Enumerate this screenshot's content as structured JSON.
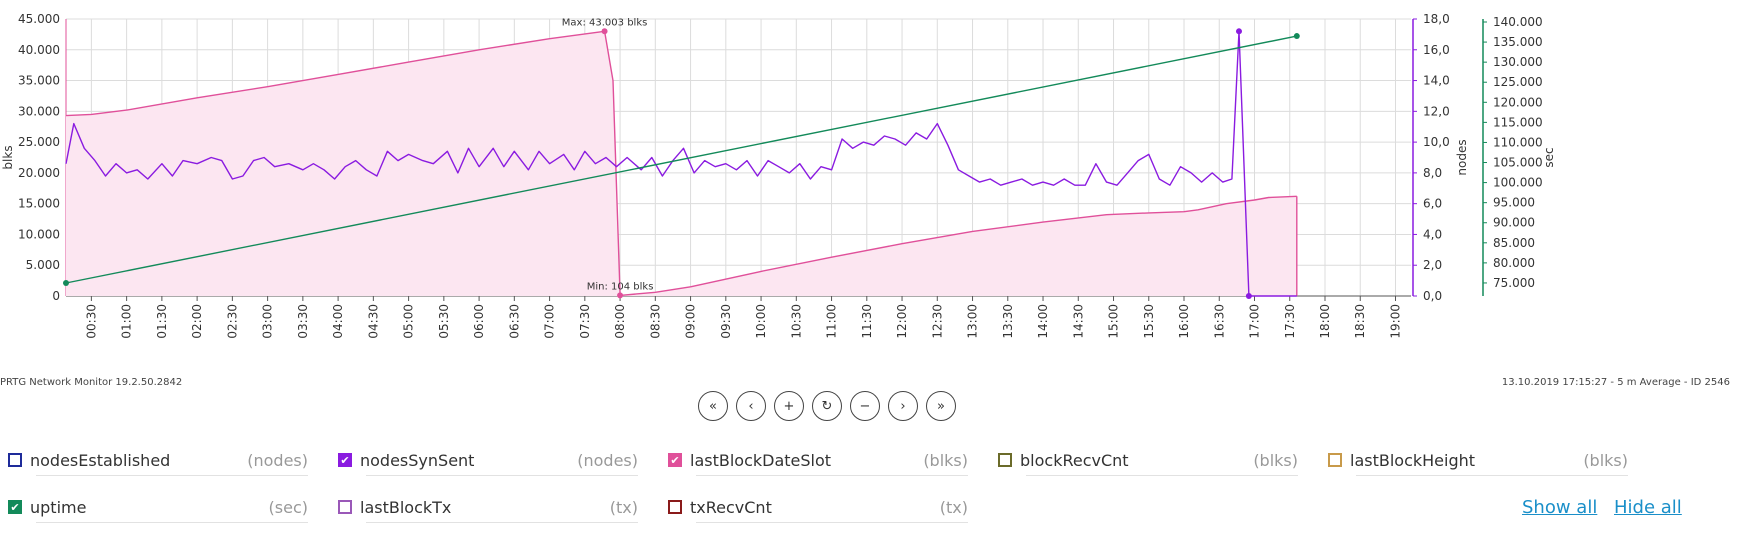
{
  "footer": {
    "left": "PRTG Network Monitor 19.2.50.2842",
    "right": "13.10.2019 17:15:27 - 5 m Average - ID 2546"
  },
  "nav": {
    "buttons": [
      {
        "name": "first-page-button",
        "glyph": "«"
      },
      {
        "name": "prev-page-button",
        "glyph": "‹"
      },
      {
        "name": "zoom-in-button",
        "glyph": "+"
      },
      {
        "name": "reset-button",
        "glyph": "↻"
      },
      {
        "name": "zoom-out-button",
        "glyph": "−"
      },
      {
        "name": "next-page-button",
        "glyph": "›"
      },
      {
        "name": "last-page-button",
        "glyph": "»"
      }
    ]
  },
  "legend": {
    "items": [
      {
        "name": "nodesEstablished",
        "unit": "(nodes)",
        "color": "#1e2b9a",
        "checked": false
      },
      {
        "name": "nodesSynSent",
        "unit": "(nodes)",
        "color": "#8a1be0",
        "checked": true
      },
      {
        "name": "lastBlockDateSlot",
        "unit": "(blks)",
        "color": "#e0509a",
        "checked": true
      },
      {
        "name": "blockRecvCnt",
        "unit": "(blks)",
        "color": "#6b6b2a",
        "checked": false
      },
      {
        "name": "lastBlockHeight",
        "unit": "(blks)",
        "color": "#c89a4a",
        "checked": false
      },
      {
        "name": "uptime",
        "unit": "(sec)",
        "color": "#138a5a",
        "checked": true
      },
      {
        "name": "lastBlockTx",
        "unit": "(tx)",
        "color": "#9a58b8",
        "checked": false
      },
      {
        "name": "txRecvCnt",
        "unit": "(tx)",
        "color": "#8a1a1a",
        "checked": false
      }
    ],
    "show_all": "Show all",
    "hide_all": "Hide all"
  },
  "chart_data": {
    "type": "line",
    "x_ticks": [
      "00:30",
      "01:00",
      "01:30",
      "02:00",
      "02:30",
      "03:00",
      "03:30",
      "04:00",
      "04:30",
      "05:00",
      "05:30",
      "06:00",
      "06:30",
      "07:00",
      "07:30",
      "08:00",
      "08:30",
      "09:00",
      "09:30",
      "10:00",
      "10:30",
      "11:00",
      "11:30",
      "12:00",
      "12:30",
      "13:00",
      "13:30",
      "14:00",
      "14:30",
      "15:00",
      "15:30",
      "16:00",
      "16:30",
      "17:00",
      "17:30",
      "18:00",
      "18:30",
      "19:00"
    ],
    "xrange_hours": [
      0.14,
      19.22
    ],
    "axes": {
      "left": {
        "label": "blks",
        "ticks": [
          "0",
          "5.000",
          "10.000",
          "15.000",
          "20.000",
          "25.000",
          "30.000",
          "35.000",
          "40.000",
          "45.000"
        ],
        "range": [
          0,
          45000
        ],
        "color": "#333333"
      },
      "right1": {
        "label": "nodes",
        "ticks": [
          "0,0",
          "2,0",
          "4,0",
          "6,0",
          "8,0",
          "10,0",
          "12,0",
          "14,0",
          "16,0",
          "18,0"
        ],
        "range": [
          0,
          18
        ],
        "color": "#8a1be0"
      },
      "right2": {
        "label": "sec",
        "ticks": [
          "75.000",
          "80.000",
          "85.000",
          "90.000",
          "95.000",
          "100.000",
          "105.000",
          "110.000",
          "115.000",
          "120.000",
          "125.000",
          "130.000",
          "135.000",
          "140.000"
        ],
        "range": [
          71750,
          140750
        ],
        "color": "#138a5a"
      }
    },
    "grid": true,
    "series": [
      {
        "name": "lastBlockDateSlot",
        "axis": "left",
        "color": "#e0509a",
        "fill": "#fce6f1",
        "style": "area",
        "points": [
          [
            0.14,
            29300
          ],
          [
            0.5,
            29500
          ],
          [
            1,
            30200
          ],
          [
            2,
            32200
          ],
          [
            3,
            34000
          ],
          [
            4,
            36000
          ],
          [
            5,
            38000
          ],
          [
            6,
            40000
          ],
          [
            7,
            41800
          ],
          [
            7.78,
            43003
          ],
          [
            7.9,
            35000
          ],
          [
            8.0,
            104
          ],
          [
            8.5,
            600
          ],
          [
            9,
            1500
          ],
          [
            10,
            4000
          ],
          [
            11,
            6300
          ],
          [
            12,
            8500
          ],
          [
            13,
            10500
          ],
          [
            14,
            12000
          ],
          [
            14.9,
            13200
          ],
          [
            15.5,
            13500
          ],
          [
            16,
            13700
          ],
          [
            16.2,
            14000
          ],
          [
            16.6,
            15000
          ],
          [
            17.0,
            15600
          ],
          [
            17.2,
            16000
          ],
          [
            17.6,
            16200
          ]
        ],
        "annotations": [
          {
            "text": "Max: 43.003 blks",
            "x": 7.78,
            "y": 43003
          },
          {
            "text": "Min: 104 blks",
            "x": 8.0,
            "y": 104
          }
        ]
      },
      {
        "name": "nodesSynSent",
        "axis": "right1",
        "color": "#8a1be0",
        "style": "line",
        "points": [
          [
            0.14,
            8.6
          ],
          [
            0.25,
            11.2
          ],
          [
            0.4,
            9.6
          ],
          [
            0.55,
            8.8
          ],
          [
            0.7,
            7.8
          ],
          [
            0.85,
            8.6
          ],
          [
            1.0,
            8.0
          ],
          [
            1.15,
            8.2
          ],
          [
            1.3,
            7.6
          ],
          [
            1.5,
            8.6
          ],
          [
            1.65,
            7.8
          ],
          [
            1.8,
            8.8
          ],
          [
            2.0,
            8.6
          ],
          [
            2.2,
            9.0
          ],
          [
            2.35,
            8.8
          ],
          [
            2.5,
            7.6
          ],
          [
            2.65,
            7.8
          ],
          [
            2.8,
            8.8
          ],
          [
            2.95,
            9.0
          ],
          [
            3.1,
            8.4
          ],
          [
            3.3,
            8.6
          ],
          [
            3.5,
            8.2
          ],
          [
            3.65,
            8.6
          ],
          [
            3.8,
            8.2
          ],
          [
            3.95,
            7.6
          ],
          [
            4.1,
            8.4
          ],
          [
            4.25,
            8.8
          ],
          [
            4.4,
            8.2
          ],
          [
            4.55,
            7.8
          ],
          [
            4.7,
            9.4
          ],
          [
            4.85,
            8.8
          ],
          [
            5.0,
            9.2
          ],
          [
            5.2,
            8.8
          ],
          [
            5.35,
            8.6
          ],
          [
            5.55,
            9.4
          ],
          [
            5.7,
            8.0
          ],
          [
            5.85,
            9.6
          ],
          [
            6.0,
            8.4
          ],
          [
            6.2,
            9.6
          ],
          [
            6.35,
            8.4
          ],
          [
            6.5,
            9.4
          ],
          [
            6.7,
            8.2
          ],
          [
            6.85,
            9.4
          ],
          [
            7.0,
            8.6
          ],
          [
            7.2,
            9.2
          ],
          [
            7.35,
            8.2
          ],
          [
            7.5,
            9.4
          ],
          [
            7.65,
            8.6
          ],
          [
            7.8,
            9.0
          ],
          [
            7.95,
            8.4
          ],
          [
            8.1,
            9.0
          ],
          [
            8.3,
            8.2
          ],
          [
            8.45,
            9.0
          ],
          [
            8.6,
            7.8
          ],
          [
            8.75,
            8.8
          ],
          [
            8.9,
            9.6
          ],
          [
            9.05,
            8.0
          ],
          [
            9.2,
            8.8
          ],
          [
            9.35,
            8.4
          ],
          [
            9.5,
            8.6
          ],
          [
            9.65,
            8.2
          ],
          [
            9.8,
            8.8
          ],
          [
            9.95,
            7.8
          ],
          [
            10.1,
            8.8
          ],
          [
            10.25,
            8.4
          ],
          [
            10.4,
            8.0
          ],
          [
            10.55,
            8.6
          ],
          [
            10.7,
            7.6
          ],
          [
            10.85,
            8.4
          ],
          [
            11.0,
            8.2
          ],
          [
            11.15,
            10.2
          ],
          [
            11.3,
            9.6
          ],
          [
            11.45,
            10.0
          ],
          [
            11.6,
            9.8
          ],
          [
            11.75,
            10.4
          ],
          [
            11.9,
            10.2
          ],
          [
            12.05,
            9.8
          ],
          [
            12.2,
            10.6
          ],
          [
            12.35,
            10.2
          ],
          [
            12.5,
            11.2
          ],
          [
            12.65,
            9.8
          ],
          [
            12.8,
            8.2
          ],
          [
            12.95,
            7.8
          ],
          [
            13.1,
            7.4
          ],
          [
            13.25,
            7.6
          ],
          [
            13.4,
            7.2
          ],
          [
            13.55,
            7.4
          ],
          [
            13.7,
            7.6
          ],
          [
            13.85,
            7.2
          ],
          [
            14.0,
            7.4
          ],
          [
            14.15,
            7.2
          ],
          [
            14.3,
            7.6
          ],
          [
            14.45,
            7.2
          ],
          [
            14.6,
            7.2
          ],
          [
            14.75,
            8.6
          ],
          [
            14.9,
            7.4
          ],
          [
            15.05,
            7.2
          ],
          [
            15.2,
            8.0
          ],
          [
            15.35,
            8.8
          ],
          [
            15.5,
            9.2
          ],
          [
            15.65,
            7.6
          ],
          [
            15.8,
            7.2
          ],
          [
            15.95,
            8.4
          ],
          [
            16.1,
            8.0
          ],
          [
            16.25,
            7.4
          ],
          [
            16.4,
            8.0
          ],
          [
            16.55,
            7.4
          ],
          [
            16.68,
            7.6
          ],
          [
            16.78,
            17.2
          ],
          [
            16.92,
            0.0
          ],
          [
            17.0,
            0.0
          ],
          [
            17.6,
            0.0
          ]
        ]
      },
      {
        "name": "uptime",
        "axis": "right2",
        "color": "#138a5a",
        "style": "line",
        "points": [
          [
            0.14,
            75000
          ],
          [
            17.6,
            136500
          ]
        ]
      }
    ]
  }
}
